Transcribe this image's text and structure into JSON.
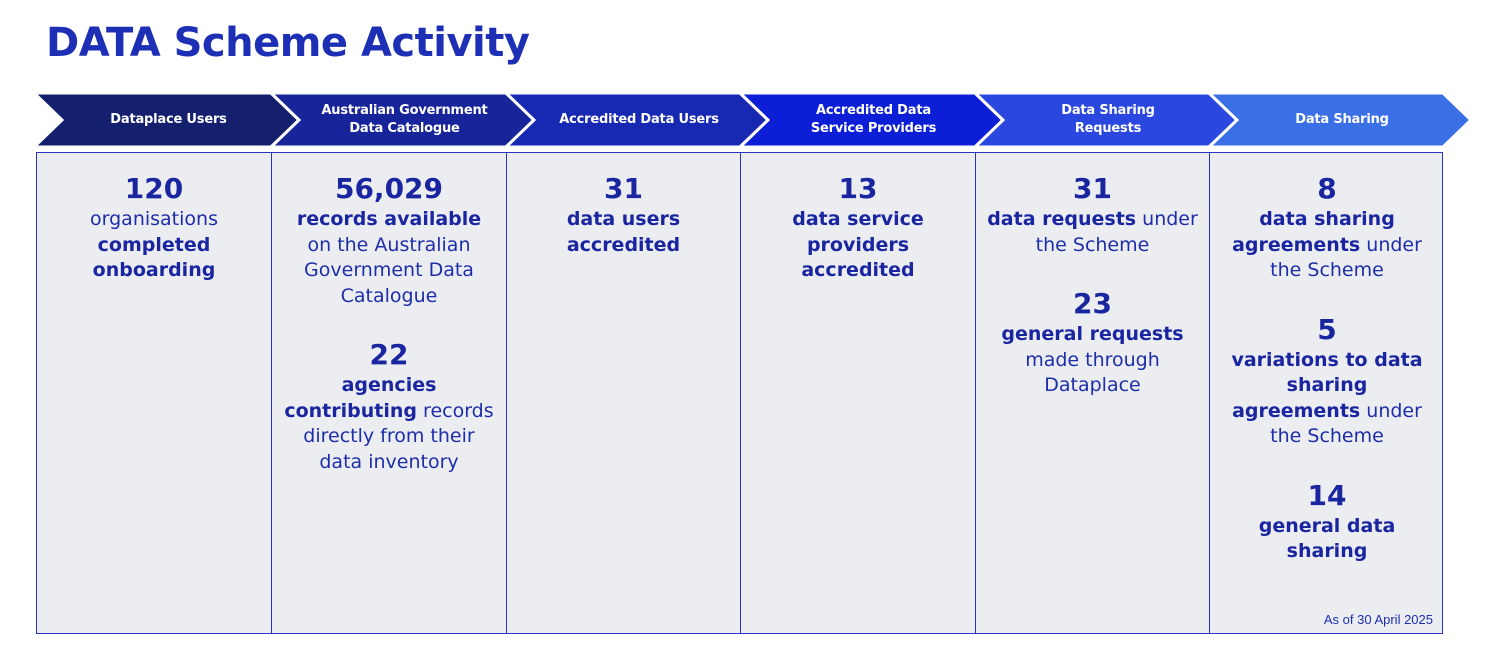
{
  "page_title": "DATA Scheme Activity",
  "as_of": "As of 30 April 2025",
  "colors": {
    "title": "#1c2fb5",
    "panel_bg": "#ebedf1",
    "border": "#2a35c4",
    "stage_1": "#14206e",
    "stage_2": "#18259a",
    "stage_3": "#1728b3",
    "stage_4": "#0d1fd6",
    "stage_5": "#2a48e0",
    "stage_6": "#3b6fe6"
  },
  "stages": [
    {
      "label": "Dataplace Users",
      "stats": [
        {
          "number": "120",
          "parts": [
            {
              "text": "organisations",
              "bold": false
            },
            {
              "text": " ",
              "bold": false
            },
            {
              "text": "completed onboarding",
              "bold": true
            }
          ]
        }
      ]
    },
    {
      "label": "Australian Government\nData Catalogue",
      "stats": [
        {
          "number": "56,029",
          "parts": [
            {
              "text": "records available",
              "bold": true
            },
            {
              "text": " on the Australian Government Data Catalogue",
              "bold": false
            }
          ]
        },
        {
          "number": "22",
          "parts": [
            {
              "text": "agencies contributing",
              "bold": true
            },
            {
              "text": " records directly from their data inventory",
              "bold": false
            }
          ]
        }
      ]
    },
    {
      "label": "Accredited Data Users",
      "stats": [
        {
          "number": "31",
          "parts": [
            {
              "text": "data users accredited",
              "bold": true
            }
          ]
        }
      ]
    },
    {
      "label": "Accredited Data\nService Providers",
      "stats": [
        {
          "number": "13",
          "parts": [
            {
              "text": "data service providers accredited",
              "bold": true
            }
          ]
        }
      ]
    },
    {
      "label": "Data Sharing\nRequests",
      "stats": [
        {
          "number": "31",
          "parts": [
            {
              "text": "data requests",
              "bold": true
            },
            {
              "text": " under the Scheme",
              "bold": false
            }
          ]
        },
        {
          "number": "23",
          "parts": [
            {
              "text": "general requests",
              "bold": true
            },
            {
              "text": " made through Dataplace",
              "bold": false
            }
          ]
        }
      ]
    },
    {
      "label": "Data Sharing",
      "stats": [
        {
          "number": "8",
          "parts": [
            {
              "text": "data sharing agreements",
              "bold": true
            },
            {
              "text": " under the Scheme",
              "bold": false
            }
          ]
        },
        {
          "number": "5",
          "parts": [
            {
              "text": "variations to data sharing agreements",
              "bold": true
            },
            {
              "text": " under the Scheme",
              "bold": false
            }
          ]
        },
        {
          "number": "14",
          "parts": [
            {
              "text": "general data sharing",
              "bold": true
            }
          ]
        }
      ]
    }
  ]
}
